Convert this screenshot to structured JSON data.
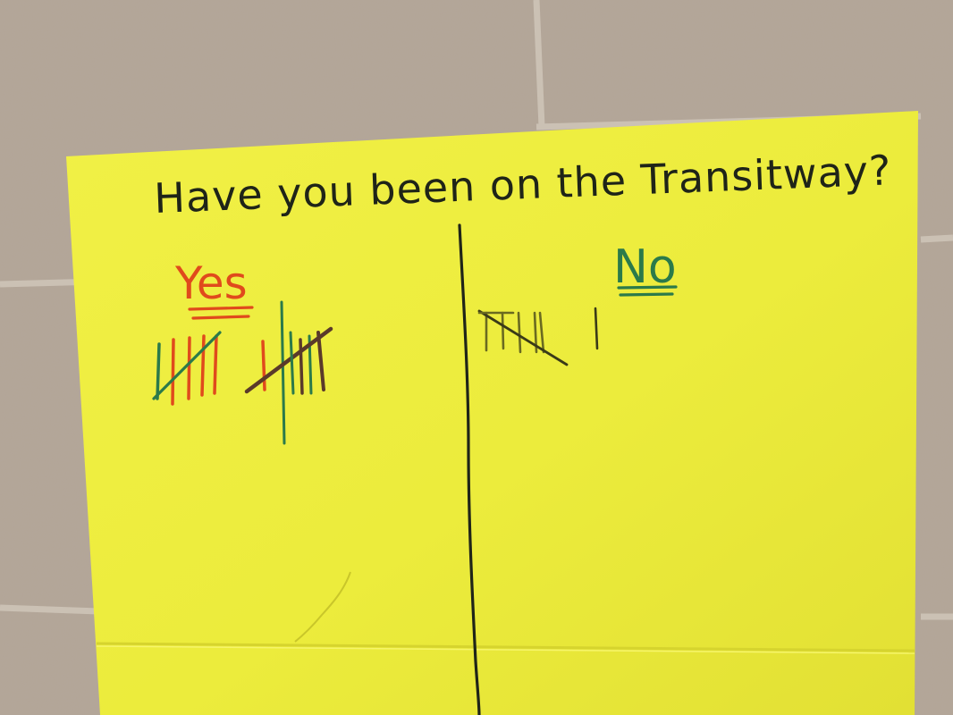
{
  "poster": {
    "question": "Have you been on the Transitway?",
    "columns": [
      {
        "label": "Yes",
        "tally_count": 11
      },
      {
        "label": "No",
        "tally_count": 6
      }
    ]
  },
  "colors": {
    "wall": "#b3a597",
    "mortar": "#c7bcaf",
    "paper": "#ecec3c",
    "ink_black": "#1f2418",
    "ink_red": "#e04a1c",
    "ink_green": "#2b7a4a",
    "ink_brown": "#5a3a2a"
  }
}
